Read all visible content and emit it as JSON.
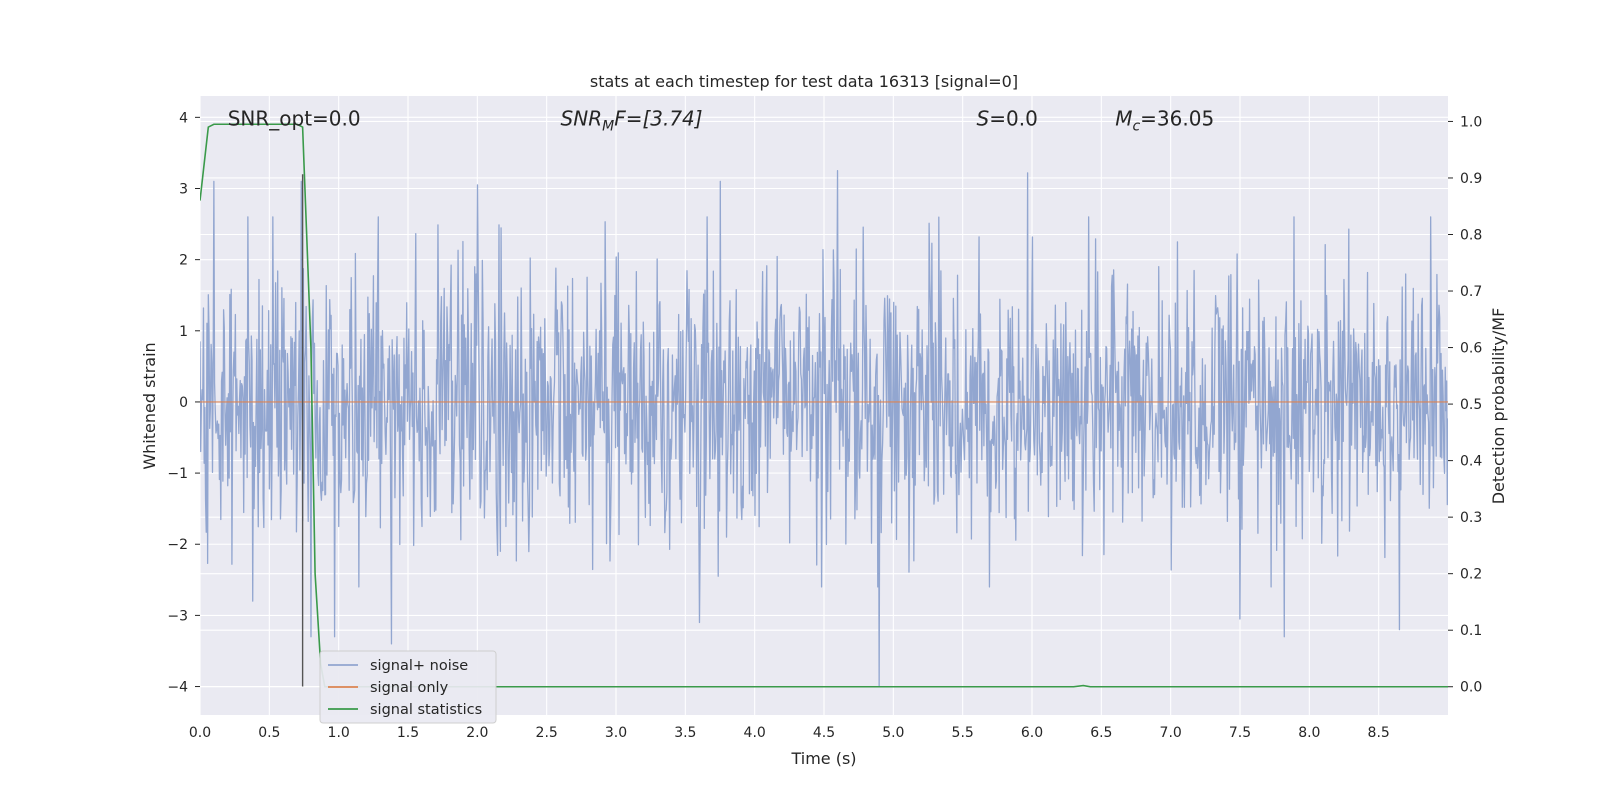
{
  "chart_data": {
    "type": "line",
    "title": "stats at each timestep for test data 16313 [signal=0]",
    "xlabel": "Time (s)",
    "ylabel_left": "Whitened strain",
    "ylabel_right": "Detection probability/MF",
    "xlim": [
      0,
      9.0
    ],
    "ylim_left": [
      -4.4,
      4.3
    ],
    "ylim_right": [
      -0.05,
      1.045
    ],
    "x_ticks": [
      0.0,
      0.5,
      1.0,
      1.5,
      2.0,
      2.5,
      3.0,
      3.5,
      4.0,
      4.5,
      5.0,
      5.5,
      6.0,
      6.5,
      7.0,
      7.5,
      8.0,
      8.5
    ],
    "x_tick_labels": [
      "0.0",
      "0.5",
      "1.0",
      "1.5",
      "2.0",
      "2.5",
      "3.0",
      "3.5",
      "4.0",
      "4.5",
      "5.0",
      "5.5",
      "6.0",
      "6.5",
      "7.0",
      "7.5",
      "8.0",
      "8.5"
    ],
    "y_ticks_left": [
      -4,
      -3,
      -2,
      -1,
      0,
      1,
      2,
      3,
      4
    ],
    "y_tick_labels_left": [
      "−4",
      "−3",
      "−2",
      "−1",
      "0",
      "1",
      "2",
      "3",
      "4"
    ],
    "y_ticks_right": [
      0.0,
      0.1,
      0.2,
      0.3,
      0.4,
      0.5,
      0.6,
      0.7,
      0.8,
      0.9,
      1.0
    ],
    "y_tick_labels_right": [
      "0.0",
      "0.1",
      "0.2",
      "0.3",
      "0.4",
      "0.5",
      "0.6",
      "0.7",
      "0.8",
      "0.9",
      "1.0"
    ],
    "grid": true,
    "legend_placement": "lower-left",
    "annotations": [
      {
        "kind": "plain",
        "text": "SNR_opt=0.0",
        "x": 0.2
      },
      {
        "kind": "snrmf",
        "main": "SNR",
        "sub": "M",
        "rest": "F=[3.74]",
        "x": 2.6
      },
      {
        "kind": "s",
        "main": "S",
        "rest": "=0.0",
        "x": 5.6
      },
      {
        "kind": "mc",
        "main": "M",
        "sub": "c",
        "rest": "=36.05",
        "x": 6.6
      }
    ],
    "annotation_y": 4.0,
    "vertical_marker": {
      "x": 0.74,
      "y_from": -4.0,
      "y_to": 3.2,
      "color": "#555555"
    },
    "series": [
      {
        "name": "signal+ noise",
        "color": "#92a6d0",
        "kind": "noise",
        "duration": 9.0,
        "n_samples": 1800,
        "sigma": 0.95,
        "spikes": [
          {
            "x": 0.1,
            "y": 3.1
          },
          {
            "x": 0.73,
            "y": 3.1
          },
          {
            "x": 0.8,
            "y": -3.3
          },
          {
            "x": 0.97,
            "y": -3.3
          },
          {
            "x": 1.38,
            "y": -3.4
          },
          {
            "x": 2.0,
            "y": 3.05
          },
          {
            "x": 3.75,
            "y": 3.1
          },
          {
            "x": 4.6,
            "y": 3.25
          },
          {
            "x": 4.9,
            "y": -4.0
          },
          {
            "x": 5.97,
            "y": 3.22
          },
          {
            "x": 7.5,
            "y": -3.05
          },
          {
            "x": 7.82,
            "y": -3.3
          },
          {
            "x": 8.65,
            "y": -3.2
          },
          {
            "x": 3.6,
            "y": -3.1
          },
          {
            "x": 0.38,
            "y": -2.8
          }
        ]
      },
      {
        "name": "signal only",
        "color": "#dd8452",
        "kind": "flat",
        "y": 0.0
      },
      {
        "name": "signal statistics",
        "color": "#3a9a4a",
        "kind": "line",
        "axis": "right",
        "points": [
          [
            0.0,
            0.86
          ],
          [
            0.06,
            0.99
          ],
          [
            0.1,
            0.995
          ],
          [
            0.3,
            0.995
          ],
          [
            0.5,
            0.995
          ],
          [
            0.7,
            0.995
          ],
          [
            0.74,
            0.99
          ],
          [
            0.8,
            0.6
          ],
          [
            0.83,
            0.2
          ],
          [
            0.87,
            0.04
          ],
          [
            0.9,
            0.0
          ],
          [
            1.5,
            0.0
          ],
          [
            3.0,
            0.0
          ],
          [
            5.0,
            0.0
          ],
          [
            6.3,
            0.0
          ],
          [
            6.37,
            0.002
          ],
          [
            6.42,
            0.0
          ],
          [
            7.5,
            0.0
          ],
          [
            9.0,
            0.0
          ]
        ]
      }
    ]
  }
}
